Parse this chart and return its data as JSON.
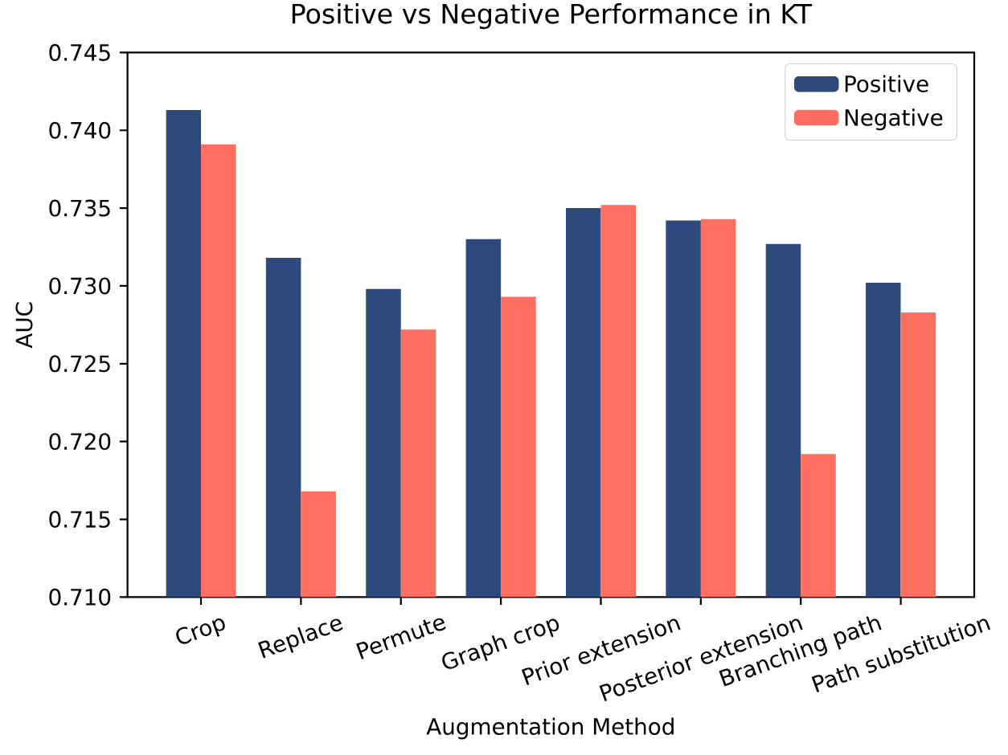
{
  "chart_data": {
    "type": "bar",
    "title": "Positive vs Negative Performance in KT",
    "xlabel": "Augmentation Method",
    "ylabel": "AUC",
    "categories": [
      "Crop",
      "Replace",
      "Permute",
      "Graph crop",
      "Prior extension",
      "Posterior extension",
      "Branching path",
      "Path substitution"
    ],
    "series": [
      {
        "name": "Positive",
        "color": "#2c4b7c",
        "values": [
          0.7413,
          0.7318,
          0.7298,
          0.733,
          0.735,
          0.7342,
          0.7327,
          0.7302
        ]
      },
      {
        "name": "Negative",
        "color": "#ff6f61",
        "values": [
          0.7391,
          0.7168,
          0.7272,
          0.7293,
          0.7352,
          0.7343,
          0.7192,
          0.7283
        ]
      }
    ],
    "ylim": [
      0.71,
      0.745
    ],
    "yticks": [
      {
        "value": 0.71,
        "label": "0.710"
      },
      {
        "value": 0.715,
        "label": "0.715"
      },
      {
        "value": 0.72,
        "label": "0.720"
      },
      {
        "value": 0.725,
        "label": "0.725"
      },
      {
        "value": 0.73,
        "label": "0.730"
      },
      {
        "value": 0.735,
        "label": "0.735"
      },
      {
        "value": 0.74,
        "label": "0.740"
      },
      {
        "value": 0.745,
        "label": "0.745"
      }
    ],
    "legend": "top right"
  }
}
